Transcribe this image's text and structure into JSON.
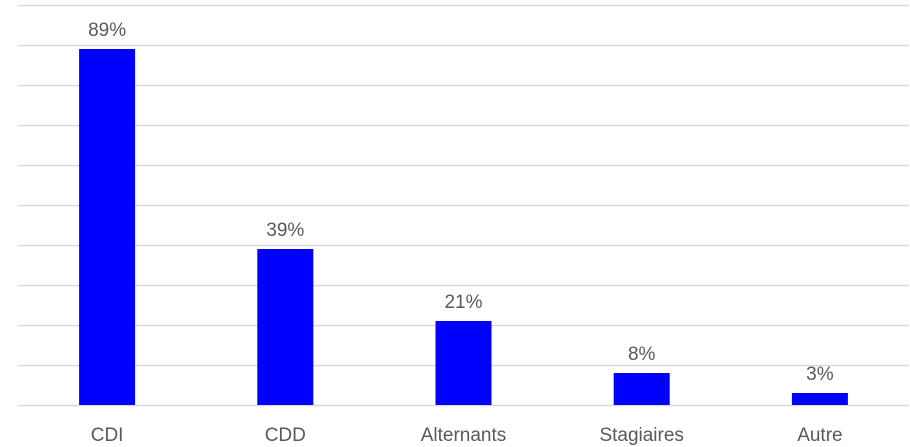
{
  "chart_data": {
    "type": "bar",
    "title": "",
    "xlabel": "",
    "ylabel": "",
    "categories": [
      "CDI",
      "CDD",
      "Alternants",
      "Stagiaires",
      "Autre"
    ],
    "values": [
      89,
      39,
      21,
      8,
      3
    ],
    "value_labels": [
      "89%",
      "39%",
      "21%",
      "8%",
      "3%"
    ],
    "unit": "%",
    "ylim": [
      0,
      100
    ],
    "y_gridline_step": 10,
    "y_axis_tick_labels_shown": false,
    "grid": true,
    "legend": "none",
    "bar_color": "#0000ff",
    "grid_color": "#d9d9d9",
    "label_color": "#595959"
  }
}
